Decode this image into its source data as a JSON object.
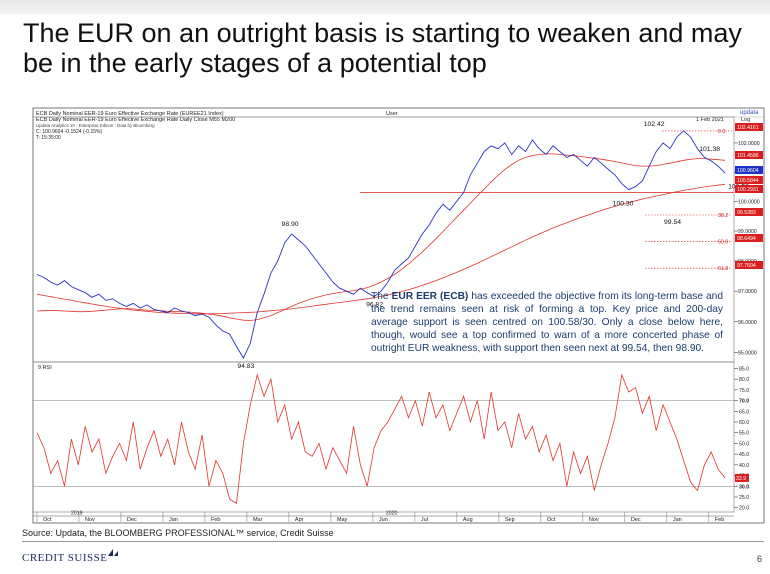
{
  "slide": {
    "title": "The EUR on an outright basis is starting to weaken and may be in the early stages of a potential top",
    "source": "Source: Updata, the BLOOMBERG PROFESSIONAL™ service, Credit Suisse",
    "logo_text": "CREDIT SUISSE",
    "page_number": "6"
  },
  "annotation": {
    "pre": "The ",
    "bold": "EUR EER (ECB)",
    "post": " has exceeded the objective from its long-term base and the trend remains seen at risk of forming a top. Key price and 200-day average support is seen centred on 100.58/30. Only a close below here, though, would see a top confirmed to warn of a more concerted phase of outright EUR weakness, with support then seen next at 99.54, then 98.90."
  },
  "chart_data": [
    {
      "type": "line",
      "header": {
        "left": "ECB Daily Nominal EER-19 Euro Effective Exchange Rate (EUREE21 Index)",
        "center": "User",
        "right": "updata",
        "line2": "ECB Daily Nominal EER-19 Euro Effective Exchange Rate Daily Close  M55    M200",
        "line3": "Updata Analytics 10 - Enterprise Edition : Data by Bloomberg",
        "line4": "C: 100.9604  -0.1524 (-0.15%)",
        "line5": "T: 15:35:00",
        "date": "1 Feb 2021",
        "scale": "Log"
      },
      "y_axis": {
        "scale": "log",
        "ylim": [
          94.7,
          102.9
        ],
        "ticks": [
          "102.0000",
          "101.0000",
          "100.0000",
          "99.0000",
          "98.0000",
          "97.0000",
          "96.0000",
          "95.0000"
        ],
        "tick_values": [
          102,
          101,
          100,
          99,
          98,
          97,
          96,
          95
        ]
      },
      "price_tags": [
        {
          "label": "102.4161",
          "value": 102.4161,
          "color": "#d81e1e"
        },
        {
          "label": "101.4586",
          "value": 101.4586,
          "color": "#d81e1e"
        },
        {
          "label": "100.9604",
          "value": 100.9604,
          "color": "#1b2fc9"
        },
        {
          "label": "100.5844",
          "value": 100.5844,
          "color": "#d81e1e"
        },
        {
          "label": "100.2931",
          "value": 100.2931,
          "color": "#d81e1e"
        },
        {
          "label": "99.5383",
          "value": 99.5383,
          "color": "#d81e1e"
        },
        {
          "label": "98.6494",
          "value": 98.6494,
          "color": "#d81e1e"
        },
        {
          "label": "97.7604",
          "value": 97.7604,
          "color": "#d81e1e"
        }
      ],
      "fib_levels": [
        {
          "label": "0.0",
          "value": 102.4161
        },
        {
          "label": "38.2",
          "value": 99.5383
        },
        {
          "label": "50.0",
          "value": 98.6494
        },
        {
          "label": "61.8",
          "value": 97.7604
        }
      ],
      "callouts": [
        {
          "label": "94.83",
          "value": 94.83
        },
        {
          "label": "98.90",
          "value": 98.9
        },
        {
          "label": "96.82",
          "value": 96.82
        },
        {
          "label": "102.42",
          "value": 102.42
        },
        {
          "label": "101.38",
          "value": 101.38
        },
        {
          "label": "100.58",
          "value": 100.58
        },
        {
          "label": "100.30",
          "value": 100.3
        },
        {
          "label": "99.54",
          "value": 99.54
        }
      ],
      "support_line": 100.3,
      "series": [
        {
          "name": "Daily Close",
          "color": "#2b33c6",
          "values": [
            97.55,
            97.45,
            97.3,
            97.2,
            97.35,
            97.15,
            97.05,
            96.95,
            96.8,
            96.9,
            96.7,
            96.75,
            96.6,
            96.5,
            96.6,
            96.45,
            96.55,
            96.4,
            96.35,
            96.3,
            96.45,
            96.35,
            96.3,
            96.2,
            96.25,
            96.15,
            95.9,
            95.7,
            95.6,
            95.2,
            94.83,
            95.3,
            96.3,
            96.9,
            97.6,
            98.0,
            98.6,
            98.9,
            98.7,
            98.5,
            98.2,
            97.9,
            97.6,
            97.3,
            97.1,
            97.0,
            96.9,
            97.1,
            96.95,
            96.82,
            97.0,
            97.3,
            97.7,
            97.9,
            98.1,
            98.5,
            98.9,
            99.2,
            99.6,
            99.9,
            99.7,
            100.0,
            100.3,
            100.9,
            101.3,
            101.7,
            101.9,
            101.8,
            102.0,
            101.6,
            101.9,
            101.7,
            102.1,
            101.8,
            101.6,
            101.9,
            101.7,
            101.5,
            101.6,
            101.4,
            101.2,
            101.5,
            101.3,
            101.1,
            100.9,
            100.6,
            100.4,
            100.5,
            100.7,
            101.2,
            101.7,
            102.0,
            101.8,
            102.2,
            102.42,
            102.2,
            101.8,
            101.5,
            101.38,
            101.2,
            100.96
          ]
        },
        {
          "name": "M55",
          "color": "#e0342b",
          "values": [
            96.35,
            96.36,
            96.37,
            96.36,
            96.35,
            96.34,
            96.33,
            96.33,
            96.34,
            96.36,
            96.38,
            96.4,
            96.42,
            96.43,
            96.42,
            96.4,
            96.38,
            96.37,
            96.36,
            96.34,
            96.33,
            96.33,
            96.32,
            96.3,
            96.28,
            96.25,
            96.22,
            96.18,
            96.13,
            96.09,
            96.05,
            96.04,
            96.07,
            96.13,
            96.2,
            96.3,
            96.4,
            96.5,
            96.6,
            96.68,
            96.76,
            96.82,
            96.88,
            96.92,
            96.96,
            96.99,
            97.02,
            97.06,
            97.12,
            97.2,
            97.3,
            97.42,
            97.56,
            97.72,
            97.9,
            98.1,
            98.3,
            98.52,
            98.74,
            98.98,
            99.22,
            99.46,
            99.7,
            99.94,
            100.18,
            100.42,
            100.66,
            100.88,
            101.08,
            101.26,
            101.4,
            101.5,
            101.56,
            101.6,
            101.62,
            101.62,
            101.6,
            101.58,
            101.56,
            101.53,
            101.5,
            101.47,
            101.44,
            101.4,
            101.36,
            101.31,
            101.26,
            101.22,
            101.2,
            101.2,
            101.22,
            101.26,
            101.3,
            101.35,
            101.4,
            101.44,
            101.46,
            101.46,
            101.44,
            101.42,
            101.4
          ]
        },
        {
          "name": "M200",
          "color": "#e0342b",
          "values": [
            96.9,
            96.86,
            96.82,
            96.78,
            96.74,
            96.7,
            96.66,
            96.62,
            96.58,
            96.54,
            96.5,
            96.47,
            96.44,
            96.41,
            96.38,
            96.36,
            96.34,
            96.32,
            96.3,
            96.29,
            96.28,
            96.27,
            96.27,
            96.26,
            96.26,
            96.26,
            96.26,
            96.27,
            96.28,
            96.29,
            96.3,
            96.31,
            96.32,
            96.34,
            96.36,
            96.38,
            96.4,
            96.42,
            96.45,
            96.48,
            96.51,
            96.54,
            96.57,
            96.6,
            96.63,
            96.66,
            96.69,
            96.72,
            96.75,
            96.79,
            96.83,
            96.88,
            96.93,
            96.99,
            97.05,
            97.12,
            97.19,
            97.27,
            97.35,
            97.44,
            97.53,
            97.62,
            97.72,
            97.82,
            97.92,
            98.03,
            98.14,
            98.25,
            98.36,
            98.47,
            98.58,
            98.69,
            98.8,
            98.9,
            99.0,
            99.1,
            99.19,
            99.28,
            99.37,
            99.45,
            99.53,
            99.61,
            99.69,
            99.76,
            99.83,
            99.9,
            99.96,
            100.02,
            100.08,
            100.13,
            100.18,
            100.23,
            100.28,
            100.33,
            100.37,
            100.41,
            100.45,
            100.49,
            100.52,
            100.55,
            100.58
          ]
        }
      ]
    },
    {
      "type": "line",
      "title": "9 RSI",
      "ylim": [
        18,
        88
      ],
      "ticks": [
        "85.0",
        "80.0",
        "75.0",
        "70.0",
        "65.0",
        "60.0",
        "55.0",
        "50.0",
        "45.0",
        "40.0",
        "35.0",
        "30.0",
        "25.0",
        "20.0"
      ],
      "tick_values": [
        85,
        80,
        75,
        70,
        65,
        60,
        55,
        50,
        45,
        40,
        35,
        30,
        25,
        20
      ],
      "levels": [
        70,
        30
      ],
      "current_tag": "33.9",
      "current_value": 33.9,
      "series": [
        {
          "name": "9 RSI",
          "color": "#e0342b",
          "values": [
            55,
            48,
            36,
            42,
            30,
            52,
            40,
            58,
            46,
            52,
            36,
            44,
            50,
            42,
            60,
            38,
            48,
            56,
            44,
            52,
            40,
            60,
            46,
            38,
            54,
            30,
            42,
            36,
            24,
            22,
            50,
            68,
            82,
            72,
            80,
            60,
            68,
            52,
            60,
            46,
            44,
            50,
            38,
            48,
            42,
            36,
            58,
            40,
            30,
            48,
            56,
            60,
            66,
            72,
            62,
            70,
            58,
            74,
            62,
            68,
            56,
            64,
            72,
            60,
            70,
            52,
            74,
            56,
            60,
            48,
            64,
            52,
            58,
            46,
            54,
            42,
            50,
            30,
            46,
            36,
            44,
            28,
            40,
            50,
            62,
            82,
            74,
            76,
            64,
            72,
            56,
            68,
            60,
            52,
            42,
            32,
            28,
            40,
            46,
            38,
            33.9
          ]
        }
      ]
    }
  ],
  "x_axis": {
    "months": [
      "Oct",
      "Nov",
      "Dec",
      "Jan",
      "Feb",
      "Mar",
      "Apr",
      "May",
      "Jun",
      "Jul",
      "Aug",
      "Sep",
      "Oct",
      "Nov",
      "Dec",
      "Jan",
      "Feb"
    ],
    "years": [
      {
        "label": "2019",
        "at": 1
      },
      {
        "label": "2020",
        "at": 8.5
      }
    ]
  }
}
